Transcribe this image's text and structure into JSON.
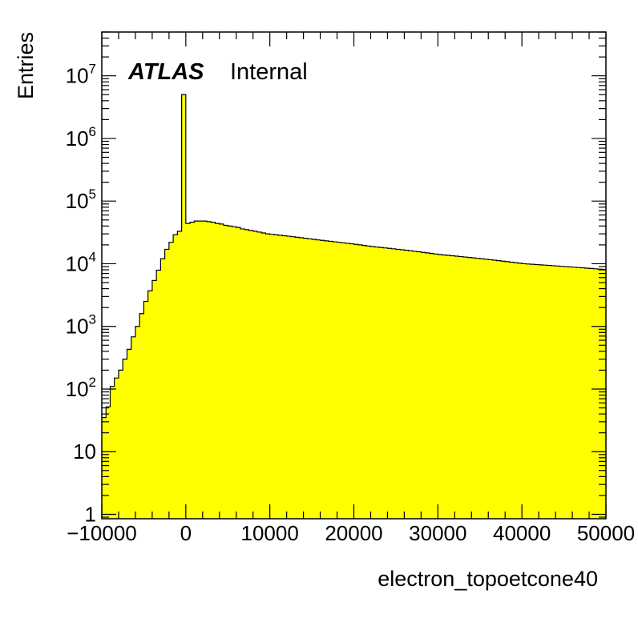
{
  "chart_data": {
    "type": "bar",
    "style": "filled-step-histogram",
    "xlabel": "electron_topoetcone40",
    "ylabel": "Entries",
    "x_scale": "linear",
    "y_scale": "log",
    "xlim": [
      -10000,
      50000
    ],
    "ylim": [
      0.85,
      50000000
    ],
    "x_ticks": [
      -10000,
      0,
      10000,
      20000,
      30000,
      40000,
      50000
    ],
    "x_tick_labels": [
      "−10000",
      "0",
      "10000",
      "20000",
      "30000",
      "40000",
      "50000"
    ],
    "y_ticks": [
      {
        "value": 1,
        "base": "1",
        "exp": ""
      },
      {
        "value": 10,
        "base": "10",
        "exp": ""
      },
      {
        "value": 100,
        "base": "10",
        "exp": "2"
      },
      {
        "value": 1000,
        "base": "10",
        "exp": "3"
      },
      {
        "value": 10000,
        "base": "10",
        "exp": "4"
      },
      {
        "value": 100000,
        "base": "10",
        "exp": "5"
      },
      {
        "value": 1000000,
        "base": "10",
        "exp": "6"
      },
      {
        "value": 10000000,
        "base": "10",
        "exp": "7"
      }
    ],
    "grid": false,
    "bin_width": 500,
    "bin_start": -10000,
    "values": [
      35,
      52,
      110,
      150,
      200,
      300,
      430,
      680,
      1000,
      1600,
      2500,
      3700,
      5400,
      7900,
      12000,
      17000,
      22000,
      29000,
      33000,
      5000000,
      44000,
      46000,
      48000,
      48000,
      48000,
      47000,
      46000,
      44000,
      43000,
      41000,
      40000,
      39000,
      38000,
      36000,
      35000,
      34000,
      33000,
      32000,
      31000,
      30000,
      29500,
      29000,
      28500,
      28000,
      27500,
      27000,
      26500,
      26000,
      25500,
      25000,
      24500,
      24000,
      23600,
      23200,
      22800,
      22400,
      22000,
      21600,
      21200,
      20800,
      20400,
      20000,
      19600,
      19200,
      18800,
      18500,
      18200,
      17900,
      17600,
      17300,
      17000,
      16700,
      16400,
      16100,
      15800,
      15500,
      15200,
      14900,
      14600,
      14300,
      14000,
      13800,
      13600,
      13400,
      13200,
      13000,
      12800,
      12600,
      12400,
      12200,
      12000,
      11800,
      11600,
      11400,
      11200,
      11000,
      10800,
      10600,
      10400,
      10200,
      10000,
      9900,
      9800,
      9700,
      9600,
      9500,
      9400,
      9300,
      9200,
      9100,
      9000,
      8900,
      8800,
      8700,
      8600,
      8500,
      8400,
      8300,
      8200,
      8100
    ],
    "fill_color": "#ffff00",
    "line_color": "#000000"
  },
  "annotations": {
    "atlas": "ATLAS",
    "internal": "Internal"
  }
}
